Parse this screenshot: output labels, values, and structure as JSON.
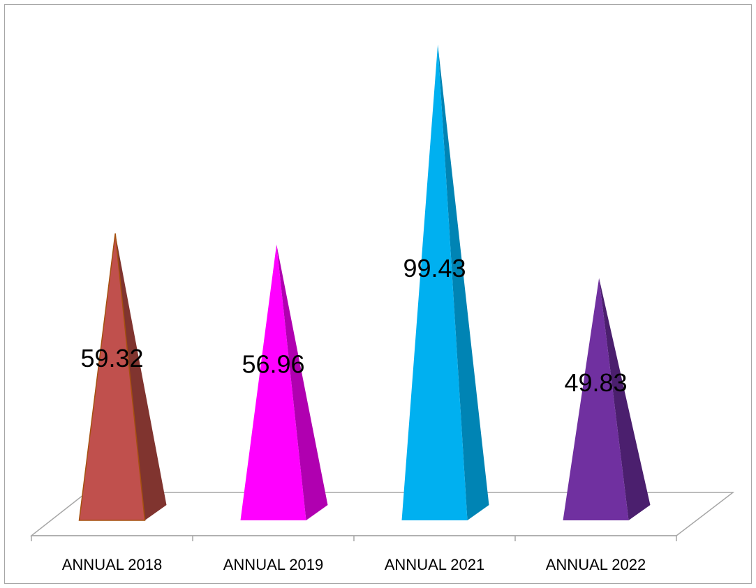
{
  "chart_data": {
    "type": "bar",
    "shape": "pyramid-3d",
    "categories": [
      "ANNUAL 2018",
      "ANNUAL 2019",
      "ANNUAL 2021",
      "ANNUAL 2022"
    ],
    "values": [
      59.32,
      56.96,
      99.43,
      49.83
    ],
    "value_labels": [
      "59.32",
      "56.96",
      "99.43",
      "49.83"
    ],
    "colors": [
      "#c0504d",
      "#ff00ff",
      "#00b0f0",
      "#7030a0"
    ],
    "side_colors": [
      "#80342f",
      "#b000b0",
      "#0084b4",
      "#4b1f6e"
    ],
    "title": "",
    "xlabel": "",
    "ylabel": "",
    "ylim": [
      0,
      100
    ],
    "grid": false,
    "legend": "none"
  }
}
